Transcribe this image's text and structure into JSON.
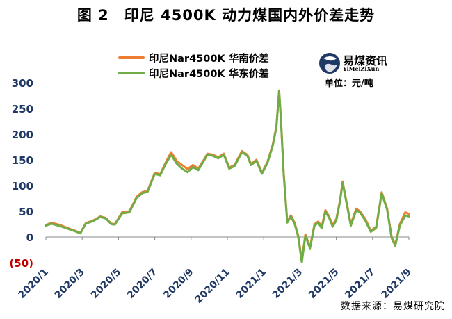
{
  "title": "图 2　印尼 4500K 动力煤国内外价差走势",
  "legend": {
    "south": "印尼Nar4500K 华南价差",
    "east": "印尼Nar4500K 华东价差"
  },
  "logo": {
    "name": "易煤资讯",
    "sub": "YiMeiZiXun"
  },
  "unit": "单位：元/吨",
  "source": "数据来源：易煤研究院",
  "colors": {
    "south": "#ED7D31",
    "east": "#70AD47",
    "axis_label": "#1F3864",
    "negative_label": "#C00000"
  },
  "chart_data": {
    "type": "line",
    "title": "印尼 4500K 动力煤国内外价差走势",
    "ylabel": "元/吨",
    "ylim": [
      -50,
      300
    ],
    "yticks": [
      300,
      250,
      200,
      150,
      100,
      50,
      0,
      -50
    ],
    "ytick_labels": [
      "300",
      "250",
      "200",
      "150",
      "100",
      "50",
      "0",
      "(50)"
    ],
    "x_range": [
      "2020/1",
      "2021/9"
    ],
    "xtick_labels": [
      "2020/1",
      "2020/3",
      "2020/5",
      "2020/7",
      "2020/9",
      "2020/11",
      "2021/1",
      "2021/3",
      "2021/5",
      "2021/7",
      "2021/9"
    ],
    "grid": false,
    "series": [
      {
        "name": "印尼Nar4500K 华南价差",
        "color": "#ED7D31",
        "points": [
          [
            0,
            23
          ],
          [
            0.3,
            28
          ],
          [
            0.8,
            23
          ],
          [
            1.3,
            16
          ],
          [
            1.7,
            11
          ],
          [
            1.9,
            8
          ],
          [
            2.2,
            27
          ],
          [
            2.6,
            32
          ],
          [
            3.0,
            40
          ],
          [
            3.3,
            37
          ],
          [
            3.6,
            26
          ],
          [
            3.8,
            25
          ],
          [
            4.2,
            48
          ],
          [
            4.6,
            50
          ],
          [
            5.0,
            78
          ],
          [
            5.3,
            87
          ],
          [
            5.6,
            90
          ],
          [
            6.0,
            125
          ],
          [
            6.3,
            122
          ],
          [
            6.6,
            145
          ],
          [
            6.9,
            165
          ],
          [
            7.2,
            148
          ],
          [
            7.5,
            140
          ],
          [
            7.8,
            132
          ],
          [
            8.1,
            140
          ],
          [
            8.4,
            133
          ],
          [
            8.7,
            150
          ],
          [
            8.9,
            162
          ],
          [
            9.2,
            160
          ],
          [
            9.5,
            155
          ],
          [
            9.8,
            162
          ],
          [
            10.1,
            135
          ],
          [
            10.4,
            140
          ],
          [
            10.8,
            167
          ],
          [
            11.1,
            160
          ],
          [
            11.3,
            142
          ],
          [
            11.6,
            150
          ],
          [
            11.9,
            125
          ],
          [
            12.2,
            145
          ],
          [
            12.5,
            180
          ],
          [
            12.7,
            215
          ],
          [
            12.85,
            285
          ],
          [
            12.95,
            230
          ],
          [
            13.1,
            125
          ],
          [
            13.3,
            30
          ],
          [
            13.5,
            42
          ],
          [
            13.7,
            28
          ],
          [
            13.9,
            3
          ],
          [
            14.1,
            -45
          ],
          [
            14.3,
            5
          ],
          [
            14.55,
            -20
          ],
          [
            14.8,
            25
          ],
          [
            15.0,
            30
          ],
          [
            15.2,
            20
          ],
          [
            15.4,
            52
          ],
          [
            15.6,
            40
          ],
          [
            15.8,
            23
          ],
          [
            16.0,
            35
          ],
          [
            16.2,
            70
          ],
          [
            16.35,
            108
          ],
          [
            16.5,
            80
          ],
          [
            16.8,
            25
          ],
          [
            17.1,
            55
          ],
          [
            17.3,
            50
          ],
          [
            17.6,
            35
          ],
          [
            17.9,
            12
          ],
          [
            18.2,
            20
          ],
          [
            18.5,
            87
          ],
          [
            18.8,
            55
          ],
          [
            19.05,
            0
          ],
          [
            19.25,
            -15
          ],
          [
            19.5,
            25
          ],
          [
            19.8,
            48
          ],
          [
            20.0,
            45
          ]
        ]
      },
      {
        "name": "印尼Nar4500K 华东价差",
        "color": "#70AD47",
        "points": [
          [
            0,
            22
          ],
          [
            0.3,
            26
          ],
          [
            0.8,
            21
          ],
          [
            1.3,
            15
          ],
          [
            1.7,
            10
          ],
          [
            1.9,
            7
          ],
          [
            2.2,
            26
          ],
          [
            2.6,
            31
          ],
          [
            3.0,
            39
          ],
          [
            3.3,
            36
          ],
          [
            3.6,
            25
          ],
          [
            3.8,
            24
          ],
          [
            4.2,
            46
          ],
          [
            4.6,
            48
          ],
          [
            5.0,
            76
          ],
          [
            5.3,
            85
          ],
          [
            5.6,
            88
          ],
          [
            6.0,
            123
          ],
          [
            6.3,
            120
          ],
          [
            6.6,
            142
          ],
          [
            6.9,
            160
          ],
          [
            7.2,
            143
          ],
          [
            7.5,
            133
          ],
          [
            7.8,
            126
          ],
          [
            8.1,
            136
          ],
          [
            8.4,
            130
          ],
          [
            8.7,
            148
          ],
          [
            8.9,
            160
          ],
          [
            9.2,
            158
          ],
          [
            9.5,
            153
          ],
          [
            9.8,
            160
          ],
          [
            10.1,
            133
          ],
          [
            10.4,
            138
          ],
          [
            10.8,
            165
          ],
          [
            11.1,
            158
          ],
          [
            11.3,
            140
          ],
          [
            11.6,
            148
          ],
          [
            11.9,
            123
          ],
          [
            12.2,
            143
          ],
          [
            12.5,
            178
          ],
          [
            12.7,
            213
          ],
          [
            12.85,
            284
          ],
          [
            12.95,
            228
          ],
          [
            13.1,
            123
          ],
          [
            13.3,
            28
          ],
          [
            13.5,
            40
          ],
          [
            13.7,
            26
          ],
          [
            13.9,
            1
          ],
          [
            14.1,
            -49
          ],
          [
            14.3,
            2
          ],
          [
            14.55,
            -22
          ],
          [
            14.8,
            22
          ],
          [
            15.0,
            28
          ],
          [
            15.2,
            17
          ],
          [
            15.4,
            49
          ],
          [
            15.6,
            38
          ],
          [
            15.8,
            20
          ],
          [
            16.0,
            32
          ],
          [
            16.2,
            68
          ],
          [
            16.35,
            105
          ],
          [
            16.5,
            78
          ],
          [
            16.8,
            22
          ],
          [
            17.1,
            52
          ],
          [
            17.3,
            48
          ],
          [
            17.6,
            32
          ],
          [
            17.9,
            10
          ],
          [
            18.2,
            18
          ],
          [
            18.5,
            85
          ],
          [
            18.8,
            53
          ],
          [
            19.05,
            -2
          ],
          [
            19.25,
            -17
          ],
          [
            19.5,
            22
          ],
          [
            19.8,
            42
          ],
          [
            20.0,
            40
          ]
        ]
      }
    ]
  }
}
